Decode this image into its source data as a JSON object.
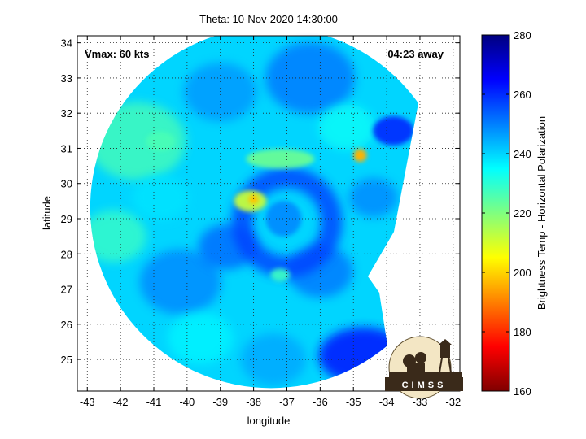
{
  "chart_data": {
    "type": "heatmap",
    "title": "Theta: 10-Nov-2020 14:30:00",
    "xlabel": "longitude",
    "ylabel": "latitude",
    "xlim": [
      -43.3,
      -31.8
    ],
    "ylim": [
      24.1,
      34.2
    ],
    "x_ticks": [
      -43,
      -42,
      -41,
      -40,
      -39,
      -38,
      -37,
      -36,
      -35,
      -34,
      -33,
      -32
    ],
    "y_ticks": [
      25,
      26,
      27,
      28,
      29,
      30,
      31,
      32,
      33,
      34
    ],
    "grid": true,
    "annotations": {
      "vmax": "Vmax: 60 kts",
      "away": "04:23 away"
    },
    "colorbar": {
      "label": "Brightness Temp - Horizontal Polarization",
      "min": 160,
      "max": 280,
      "ticks": [
        160,
        180,
        200,
        220,
        240,
        260,
        280
      ],
      "colormap": [
        "#7f0000",
        "#ff0000",
        "#ffff00",
        "#00ffff",
        "#0000ff",
        "#00007f"
      ]
    },
    "swath": {
      "center_lon": -37.7,
      "center_lat": 29.15,
      "background_temp": 240,
      "features": [
        {
          "name": "eye-core",
          "lon": -38.1,
          "lat": 29.5,
          "temp": 205
        },
        {
          "name": "north-band",
          "lon": -37.2,
          "lat": 30.7,
          "temp": 218
        },
        {
          "name": "hot-spot-east",
          "lon": -34.8,
          "lat": 30.8,
          "temp": 200
        },
        {
          "name": "cold-ring",
          "lon": -37.0,
          "lat": 28.9,
          "temp": 258
        },
        {
          "name": "south-east-cold",
          "lon": -35.0,
          "lat": 25.0,
          "temp": 262
        }
      ]
    }
  },
  "logo": {
    "text": "CIMSS"
  }
}
